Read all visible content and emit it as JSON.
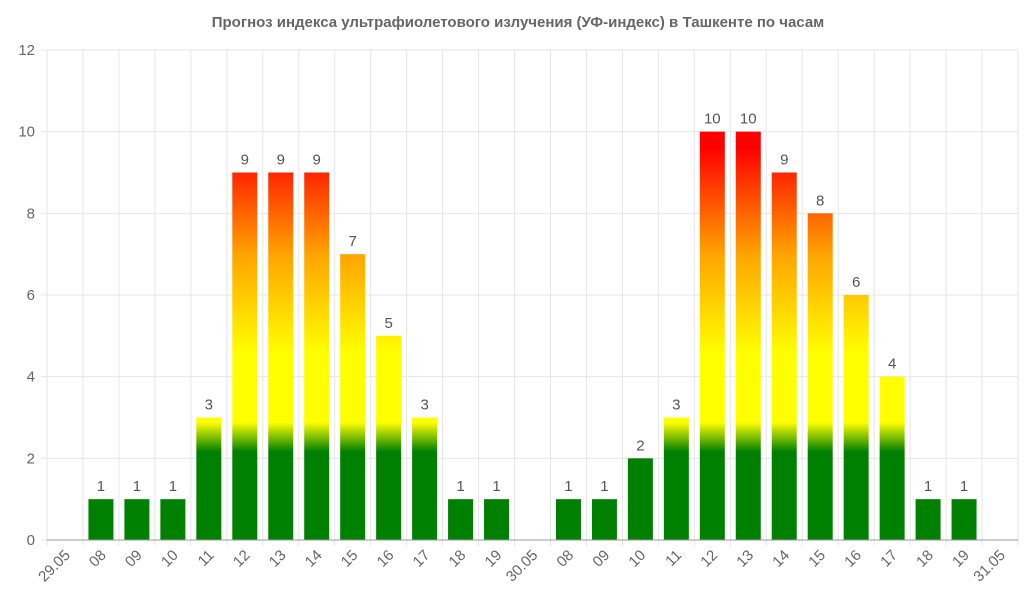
{
  "chart_data": {
    "type": "bar",
    "title": "Прогноз индекса ультрафиолетового излучения (УФ-индекс) в Ташкенте по часам",
    "xlabel": "",
    "ylabel": "",
    "ylim": [
      0,
      12
    ],
    "yticks": [
      0,
      2,
      4,
      6,
      8,
      10,
      12
    ],
    "grid": true,
    "legend": "none",
    "categories": [
      "29.05",
      "08",
      "09",
      "10",
      "11",
      "12",
      "13",
      "14",
      "15",
      "16",
      "17",
      "18",
      "19",
      "30.05",
      "08",
      "09",
      "10",
      "11",
      "12",
      "13",
      "14",
      "15",
      "16",
      "17",
      "18",
      "19",
      "31.05"
    ],
    "values": [
      null,
      1,
      1,
      1,
      3,
      9,
      9,
      9,
      7,
      5,
      3,
      1,
      1,
      null,
      1,
      1,
      2,
      3,
      10,
      10,
      9,
      8,
      6,
      4,
      1,
      1,
      null
    ],
    "colors": {
      "low": "#008000",
      "moderate": "#ffff00",
      "high": "#ffa500",
      "extreme": "#ff0000",
      "grid": "#e6e6e6",
      "axis": "#999999"
    }
  }
}
